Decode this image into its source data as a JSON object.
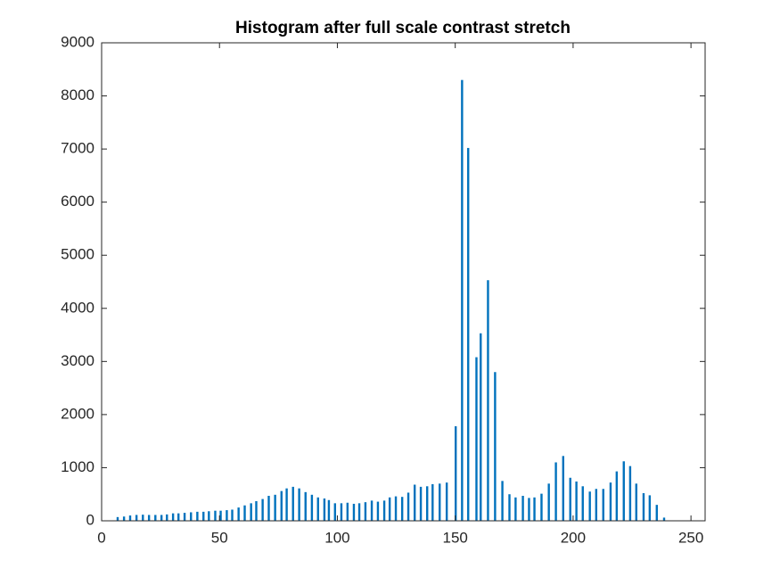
{
  "chart_data": {
    "type": "bar",
    "title": "Histogram after full scale contrast stretch",
    "color": "#0072bd",
    "x": [
      6.8,
      9.5,
      12.1,
      14.8,
      17.5,
      20.1,
      22.8,
      25.4,
      27.7,
      30.3,
      32.6,
      35.2,
      37.9,
      40.6,
      43.2,
      45.5,
      48.2,
      50.5,
      53.1,
      55.4,
      58.1,
      60.7,
      63.4,
      65.6,
      68.3,
      70.9,
      73.6,
      76.3,
      78.5,
      81.2,
      83.8,
      86.5,
      89.2,
      91.8,
      94.5,
      96.4,
      99.0,
      101.7,
      104.3,
      107.0,
      109.3,
      111.9,
      114.6,
      117.2,
      119.9,
      122.2,
      124.8,
      127.5,
      130.1,
      132.8,
      135.4,
      138.1,
      140.4,
      143.4,
      146.4,
      150.2,
      152.9,
      155.5,
      159.0,
      160.8,
      163.9,
      166.9,
      170.0,
      173.0,
      175.6,
      178.7,
      181.3,
      183.6,
      186.6,
      189.7,
      192.7,
      195.8,
      198.8,
      201.4,
      204.1,
      207.1,
      209.8,
      212.8,
      215.9,
      218.5,
      221.5,
      224.2,
      226.8,
      229.9,
      232.5,
      235.5,
      238.6
    ],
    "values": [
      70,
      80,
      100,
      110,
      115,
      110,
      110,
      110,
      120,
      140,
      140,
      150,
      160,
      170,
      170,
      180,
      190,
      190,
      200,
      210,
      250,
      290,
      330,
      370,
      410,
      470,
      490,
      560,
      610,
      640,
      610,
      540,
      490,
      440,
      420,
      390,
      330,
      330,
      340,
      320,
      330,
      350,
      380,
      360,
      380,
      440,
      460,
      450,
      530,
      680,
      640,
      650,
      690,
      700,
      720,
      1780,
      8300,
      7020,
      3080,
      3530,
      4530,
      2800,
      750,
      500,
      440,
      470,
      430,
      440,
      510,
      700,
      1100,
      1220,
      810,
      740,
      650,
      550,
      600,
      600,
      720,
      930,
      1120,
      1030,
      700,
      520,
      480,
      300,
      60
    ],
    "xlim": [
      0,
      256
    ],
    "xticks": [
      0,
      50,
      100,
      150,
      200,
      250
    ],
    "ylim": [
      0,
      9000
    ],
    "yticks": [
      0,
      1000,
      2000,
      3000,
      4000,
      5000,
      6000,
      7000,
      8000,
      9000
    ]
  }
}
